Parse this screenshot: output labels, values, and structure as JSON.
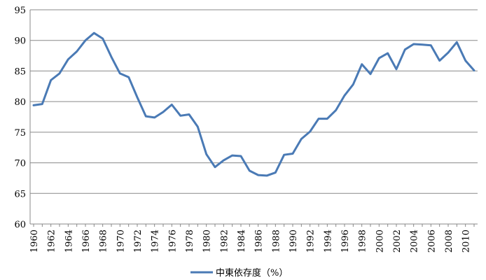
{
  "chart_data": {
    "type": "line",
    "title": "",
    "xlabel": "",
    "ylabel": "",
    "ylim": [
      60,
      95
    ],
    "yticks": [
      60,
      65,
      70,
      75,
      80,
      85,
      90,
      95
    ],
    "xticks": [
      1960,
      1962,
      1964,
      1966,
      1968,
      1970,
      1972,
      1974,
      1976,
      1978,
      1980,
      1982,
      1984,
      1986,
      1988,
      1990,
      1992,
      1994,
      1996,
      1998,
      2000,
      2002,
      2004,
      2006,
      2008,
      2010
    ],
    "grid": "horizontal",
    "legend_position": "bottom",
    "colors": {
      "series": "#4a7ab5",
      "grid": "#898989",
      "axis": "#898989"
    },
    "x": [
      1960,
      1961,
      1962,
      1963,
      1964,
      1965,
      1966,
      1967,
      1968,
      1969,
      1970,
      1971,
      1972,
      1973,
      1974,
      1975,
      1976,
      1977,
      1978,
      1979,
      1980,
      1981,
      1982,
      1983,
      1984,
      1985,
      1986,
      1987,
      1988,
      1989,
      1990,
      1991,
      1992,
      1993,
      1994,
      1995,
      1996,
      1997,
      1998,
      1999,
      2000,
      2001,
      2002,
      2003,
      2004,
      2005,
      2006,
      2007,
      2008,
      2009,
      2010,
      2011
    ],
    "series": [
      {
        "name": "中東依存度（%）",
        "values": [
          79.4,
          79.6,
          83.5,
          84.6,
          86.9,
          88.2,
          90.0,
          91.2,
          90.3,
          87.3,
          84.6,
          84.0,
          80.7,
          77.6,
          77.4,
          78.3,
          79.5,
          77.7,
          77.9,
          75.9,
          71.4,
          69.3,
          70.4,
          71.2,
          71.1,
          68.7,
          68.0,
          67.9,
          68.4,
          71.3,
          71.5,
          73.9,
          75.1,
          77.2,
          77.2,
          78.6,
          81.0,
          82.8,
          86.1,
          84.5,
          87.1,
          87.9,
          85.3,
          88.5,
          89.4,
          89.3,
          89.2,
          86.7,
          88.0,
          89.7,
          86.7,
          85.1
        ]
      }
    ]
  }
}
